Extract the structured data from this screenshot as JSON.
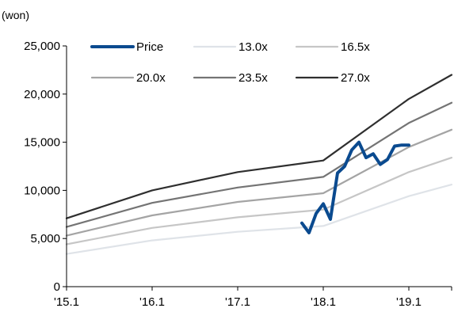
{
  "chart_data": {
    "type": "line",
    "unit_label": "(won)",
    "x_ticks": [
      "'15.1",
      "'16.1",
      "'17.1",
      "'18.1",
      "'19.1"
    ],
    "x_range": [
      0,
      54
    ],
    "y_ticks": [
      "25,000",
      "20,000",
      "15,000",
      "10,000",
      "5,000",
      "0"
    ],
    "ylim": [
      0,
      25000
    ],
    "grid": false,
    "legend_placement": "top, inside plot, 3 columns",
    "series": [
      {
        "name": "Price",
        "color": "#0a4a8f",
        "x": [
          33,
          34,
          35,
          36,
          37,
          38,
          39,
          40,
          41,
          42,
          43,
          44,
          45,
          46,
          47,
          48
        ],
        "values": [
          6600,
          5600,
          7600,
          8600,
          7000,
          11800,
          12500,
          14200,
          15000,
          13400,
          13800,
          12700,
          13200,
          14600,
          14700,
          14700
        ]
      },
      {
        "name": "13.0x",
        "color": "#dfe3e8",
        "x": [
          0,
          12,
          24,
          36,
          48,
          54
        ],
        "values": [
          3400,
          4800,
          5700,
          6300,
          9400,
          10600
        ]
      },
      {
        "name": "16.5x",
        "color": "#c6c6c6",
        "x": [
          0,
          12,
          24,
          36,
          48,
          54
        ],
        "values": [
          4400,
          6100,
          7200,
          8000,
          11900,
          13400
        ]
      },
      {
        "name": "20.0x",
        "color": "#a4a4a4",
        "x": [
          0,
          12,
          24,
          36,
          48,
          54
        ],
        "values": [
          5300,
          7400,
          8800,
          9700,
          14500,
          16300
        ]
      },
      {
        "name": "23.5x",
        "color": "#747474",
        "x": [
          0,
          12,
          24,
          36,
          48,
          54
        ],
        "values": [
          6200,
          8700,
          10300,
          11400,
          17000,
          19100
        ]
      },
      {
        "name": "27.0x",
        "color": "#2f2f2f",
        "x": [
          0,
          12,
          24,
          36,
          48,
          54
        ],
        "values": [
          7100,
          10000,
          11900,
          13100,
          19500,
          22000
        ]
      }
    ]
  }
}
